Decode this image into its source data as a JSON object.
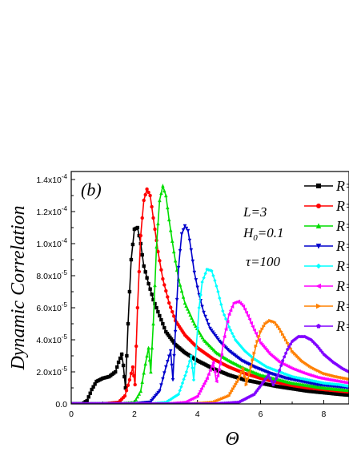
{
  "chart_data": {
    "type": "line",
    "panel_label": "(b)",
    "xlabel": "Θ",
    "ylabel": "Dynamic Correlation",
    "xlim": [
      0,
      8.8
    ],
    "ylim": [
      0,
      0.000145
    ],
    "x_ticks": [
      0,
      2,
      4,
      6,
      8
    ],
    "x_tick_labels": [
      "0",
      "2",
      "4",
      "6",
      "8"
    ],
    "y_ticks": [
      0,
      2e-05,
      4e-05,
      6e-05,
      8e-05,
      0.0001,
      0.00012,
      0.00014
    ],
    "y_tick_labels": [
      "0.0",
      "2.0x10",
      "4.0x10",
      "6.0x10",
      "8.0x10",
      "1.0x10",
      "1.2x10",
      "1.4x10"
    ],
    "y_tick_exponents": [
      "",
      "-5",
      "-5",
      "-5",
      "-5",
      "-4",
      "-4",
      "-4"
    ],
    "annotations": [
      {
        "text": "L=3",
        "sub": ""
      },
      {
        "text": "H",
        "sub": "0",
        "after": "=0.1"
      },
      {
        "text": "τ=100",
        "sub": ""
      }
    ],
    "legend_position": "top-right",
    "series": [
      {
        "name": "R=",
        "color": "#000000",
        "marker": "square",
        "x": [
          0.0,
          0.2,
          0.35,
          0.5,
          0.65,
          0.8,
          1.0,
          1.2,
          1.4,
          1.5,
          1.6,
          1.65,
          1.72,
          1.8,
          1.9,
          2.0,
          2.1,
          2.2,
          2.3,
          2.45,
          2.6,
          2.8,
          3.0,
          3.3,
          3.6,
          4.0,
          4.5,
          5.0,
          5.5,
          6.0,
          6.5,
          7.0,
          7.5,
          8.0,
          8.5,
          8.8
        ],
        "y": [
          0.0,
          0.0,
          0.0,
          2e-06,
          9e-06,
          1.4e-05,
          1.6e-05,
          1.7e-05,
          2e-05,
          2.6e-05,
          3.1e-05,
          2.4e-05,
          1e-05,
          5e-05,
          9e-05,
          0.000109,
          0.00011,
          0.0001,
          8.6e-05,
          7.5e-05,
          6.5e-05,
          5.5e-05,
          4.5e-05,
          3.7e-05,
          3.2e-05,
          2.7e-05,
          2.2e-05,
          1.8e-05,
          1.5e-05,
          1.3e-05,
          1.1e-05,
          9.5e-06,
          8e-06,
          7e-06,
          6e-06,
          5.5e-06
        ]
      },
      {
        "name": "R=",
        "color": "#ff0000",
        "marker": "circle",
        "x": [
          0.0,
          1.0,
          1.5,
          1.7,
          1.85,
          1.95,
          2.02,
          2.1,
          2.2,
          2.3,
          2.4,
          2.5,
          2.6,
          2.75,
          2.9,
          3.1,
          3.3,
          3.6,
          4.0,
          4.5,
          5.0,
          5.5,
          6.0,
          6.5,
          7.0,
          7.5,
          8.0,
          8.5,
          8.8
        ],
        "y": [
          0.0,
          0.0,
          1e-06,
          5e-06,
          1.5e-05,
          2.3e-05,
          1.2e-05,
          6e-05,
          0.000105,
          0.000127,
          0.000134,
          0.00013,
          0.000116,
          9.5e-05,
          7.8e-05,
          6.3e-05,
          5.2e-05,
          4.3e-05,
          3.5e-05,
          2.8e-05,
          2.3e-05,
          1.9e-05,
          1.6e-05,
          1.35e-05,
          1.15e-05,
          1e-05,
          9e-06,
          8e-06,
          7.5e-06
        ]
      },
      {
        "name": "R=",
        "color": "#00dd00",
        "marker": "triangle-up",
        "x": [
          0.0,
          1.5,
          2.0,
          2.2,
          2.35,
          2.45,
          2.52,
          2.6,
          2.7,
          2.8,
          2.9,
          3.0,
          3.1,
          3.25,
          3.4,
          3.6,
          3.9,
          4.2,
          4.6,
          5.0,
          5.5,
          6.0,
          6.5,
          7.0,
          7.5,
          8.0,
          8.5,
          8.8
        ],
        "y": [
          0.0,
          0.0,
          1e-06,
          8e-06,
          2.5e-05,
          3.5e-05,
          2e-05,
          5e-05,
          9.8e-05,
          0.000127,
          0.000136,
          0.00013,
          0.000115,
          9.5e-05,
          7.8e-05,
          6.3e-05,
          5e-05,
          4e-05,
          3.2e-05,
          2.7e-05,
          2.2e-05,
          1.8e-05,
          1.55e-05,
          1.3e-05,
          1.15e-05,
          1e-05,
          9e-06,
          8.5e-06
        ]
      },
      {
        "name": "R=",
        "color": "#0000cc",
        "marker": "triangle-down",
        "x": [
          0.0,
          2.0,
          2.5,
          2.8,
          3.0,
          3.15,
          3.22,
          3.3,
          3.4,
          3.5,
          3.6,
          3.7,
          3.8,
          3.9,
          4.05,
          4.2,
          4.4,
          4.7,
          5.0,
          5.4,
          5.8,
          6.3,
          6.8,
          7.3,
          7.8,
          8.3,
          8.8
        ],
        "y": [
          0.0,
          0.0,
          1e-06,
          8e-06,
          2.3e-05,
          3.3e-05,
          1.5e-05,
          4.5e-05,
          8.5e-05,
          0.000106,
          0.000111,
          0.000108,
          9.6e-05,
          8.2e-05,
          6.8e-05,
          5.7e-05,
          4.7e-05,
          3.9e-05,
          3.3e-05,
          2.7e-05,
          2.3e-05,
          1.9e-05,
          1.6e-05,
          1.4e-05,
          1.2e-05,
          1.1e-05,
          1e-05
        ]
      },
      {
        "name": "R=",
        "color": "#00ffff",
        "marker": "diamond",
        "x": [
          0.0,
          2.5,
          3.0,
          3.4,
          3.65,
          3.8,
          3.88,
          3.96,
          4.05,
          4.15,
          4.3,
          4.45,
          4.55,
          4.65,
          4.8,
          5.0,
          5.2,
          5.5,
          5.8,
          6.2,
          6.6,
          7.0,
          7.5,
          8.0,
          8.5,
          8.8
        ],
        "y": [
          0.0,
          0.0,
          1e-06,
          6e-06,
          2e-05,
          3e-05,
          1.5e-05,
          3.5e-05,
          6e-05,
          7.6e-05,
          8.4e-05,
          8.3e-05,
          7.7e-05,
          7e-05,
          5.8e-05,
          4.8e-05,
          4e-05,
          3.3e-05,
          2.8e-05,
          2.3e-05,
          2e-05,
          1.7e-05,
          1.5e-05,
          1.3e-05,
          1.2e-05,
          1.1e-05
        ]
      },
      {
        "name": "R=",
        "color": "#ff00ff",
        "marker": "triangle-left",
        "x": [
          0.0,
          3.0,
          3.6,
          4.0,
          4.3,
          4.5,
          4.6,
          4.72,
          4.85,
          5.0,
          5.15,
          5.3,
          5.45,
          5.6,
          5.8,
          6.0,
          6.3,
          6.6,
          7.0,
          7.4,
          7.8,
          8.2,
          8.8
        ],
        "y": [
          0.0,
          0.0,
          1e-06,
          5e-06,
          1.6e-05,
          2.6e-05,
          1.4e-05,
          2.5e-05,
          4.2e-05,
          5.6e-05,
          6.3e-05,
          6.4e-05,
          6.1e-05,
          5.5e-05,
          4.6e-05,
          3.8e-05,
          3.1e-05,
          2.6e-05,
          2.2e-05,
          1.9e-05,
          1.65e-05,
          1.5e-05,
          1.3e-05
        ]
      },
      {
        "name": "R=",
        "color": "#ff8000",
        "marker": "triangle-right",
        "x": [
          0.0,
          3.8,
          4.5,
          5.0,
          5.3,
          5.45,
          5.55,
          5.7,
          5.85,
          6.0,
          6.15,
          6.3,
          6.45,
          6.6,
          6.8,
          7.0,
          7.3,
          7.6,
          8.0,
          8.4,
          8.8
        ],
        "y": [
          0.0,
          0.0,
          1e-06,
          5e-06,
          1.5e-05,
          2.2e-05,
          1.2e-05,
          2.3e-05,
          3.6e-05,
          4.5e-05,
          5e-05,
          5.2e-05,
          5.1e-05,
          4.7e-05,
          4e-05,
          3.3e-05,
          2.7e-05,
          2.3e-05,
          1.9e-05,
          1.7e-05,
          1.55e-05
        ]
      },
      {
        "name": "R=",
        "color": "#8000ff",
        "marker": "pentagon",
        "x": [
          0.0,
          4.5,
          5.3,
          5.8,
          6.1,
          6.25,
          6.4,
          6.55,
          6.7,
          6.85,
          7.0,
          7.2,
          7.4,
          7.6,
          7.8,
          8.0,
          8.3,
          8.6,
          8.8
        ],
        "y": [
          0.0,
          0.0,
          1e-06,
          6e-06,
          1.4e-05,
          1.8e-05,
          1.2e-05,
          1.8e-05,
          2.7e-05,
          3.4e-05,
          3.9e-05,
          4.2e-05,
          4.2e-05,
          4e-05,
          3.6e-05,
          3.1e-05,
          2.6e-05,
          2.2e-05,
          2e-05
        ]
      }
    ]
  }
}
